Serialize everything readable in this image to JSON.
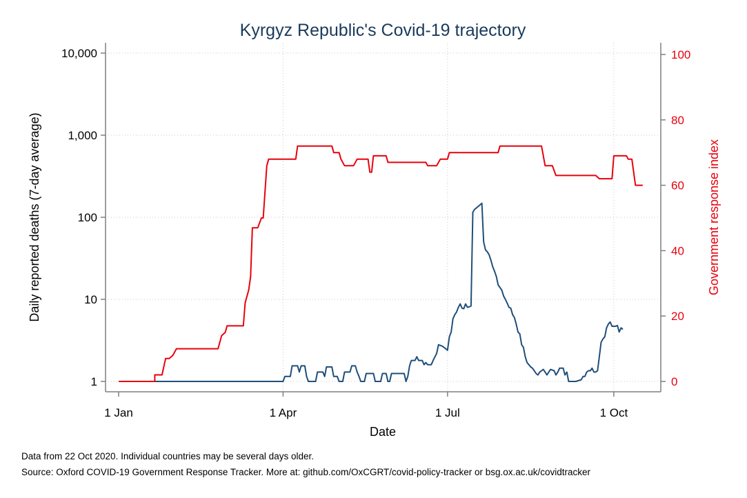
{
  "chart_data": {
    "type": "line",
    "title": "Kyrgyz Republic's Covid-19 trajectory",
    "xlabel": "Date",
    "ylabel_left": "Daily reported deaths (7-day average)",
    "ylabel_right": "Government response index",
    "x_ticks": [
      {
        "day": 0,
        "label": "1 Jan"
      },
      {
        "day": 91,
        "label": "1 Apr"
      },
      {
        "day": 182,
        "label": "1 Jul"
      },
      {
        "day": 274,
        "label": "1 Oct"
      }
    ],
    "y_left": {
      "scale": "log",
      "range": [
        1,
        10000
      ],
      "ticks": [
        {
          "value": 1,
          "label": "1"
        },
        {
          "value": 10,
          "label": "10"
        },
        {
          "value": 100,
          "label": "100"
        },
        {
          "value": 1000,
          "label": "1,000"
        },
        {
          "value": 10000,
          "label": "10,000"
        }
      ]
    },
    "y_right": {
      "scale": "linear",
      "range": [
        0,
        100
      ],
      "ticks": [
        {
          "value": 0,
          "label": "0"
        },
        {
          "value": 20,
          "label": "20"
        },
        {
          "value": 40,
          "label": "40"
        },
        {
          "value": 60,
          "label": "60"
        },
        {
          "value": 80,
          "label": "80"
        },
        {
          "value": 100,
          "label": "100"
        }
      ]
    },
    "grid": true,
    "series": [
      {
        "axis": "left",
        "color": "#1f4e79",
        "points": [
          [
            0,
            1
          ],
          [
            91,
            1
          ],
          [
            92,
            1.15
          ],
          [
            95,
            1.15
          ],
          [
            96,
            1.55
          ],
          [
            99,
            1.55
          ],
          [
            100,
            1.3
          ],
          [
            101,
            1.55
          ],
          [
            103,
            1.55
          ],
          [
            104,
            1.15
          ],
          [
            105,
            1
          ],
          [
            109,
            1
          ],
          [
            110,
            1.3
          ],
          [
            113,
            1.3
          ],
          [
            114,
            1.15
          ],
          [
            115,
            1.5
          ],
          [
            118,
            1.5
          ],
          [
            119,
            1.15
          ],
          [
            121,
            1.15
          ],
          [
            122,
            1
          ],
          [
            124,
            1
          ],
          [
            125,
            1.3
          ],
          [
            128,
            1.3
          ],
          [
            129,
            1.55
          ],
          [
            131,
            1.55
          ],
          [
            132,
            1.3
          ],
          [
            133,
            1.15
          ],
          [
            134,
            1
          ],
          [
            136,
            1
          ],
          [
            137,
            1.25
          ],
          [
            141,
            1.25
          ],
          [
            142,
            1
          ],
          [
            145,
            1
          ],
          [
            146,
            1.25
          ],
          [
            148,
            1.25
          ],
          [
            149,
            1
          ],
          [
            150,
            1
          ],
          [
            151,
            1.25
          ],
          [
            158,
            1.25
          ],
          [
            159,
            1
          ],
          [
            160,
            1.15
          ],
          [
            161,
            1.55
          ],
          [
            162,
            1.8
          ],
          [
            164,
            1.8
          ],
          [
            165,
            2
          ],
          [
            166,
            1.8
          ],
          [
            168,
            1.8
          ],
          [
            169,
            1.6
          ],
          [
            170,
            1.7
          ],
          [
            171,
            1.6
          ],
          [
            173,
            1.6
          ],
          [
            174,
            1.8
          ],
          [
            176,
            2.2
          ],
          [
            177,
            2.8
          ],
          [
            179,
            2.7
          ],
          [
            181,
            2.5
          ],
          [
            182,
            2.4
          ],
          [
            183,
            3.5
          ],
          [
            184,
            4
          ],
          [
            185,
            5.8
          ],
          [
            186,
            6.5
          ],
          [
            187,
            7
          ],
          [
            188,
            8
          ],
          [
            189,
            8.8
          ],
          [
            190,
            7.8
          ],
          [
            191,
            7.7
          ],
          [
            192,
            8.8
          ],
          [
            193,
            8
          ],
          [
            194,
            8.1
          ],
          [
            195,
            8.3
          ],
          [
            196,
            115
          ],
          [
            197,
            125
          ],
          [
            198,
            130
          ],
          [
            201,
            148
          ],
          [
            202,
            50
          ],
          [
            203,
            40
          ],
          [
            204,
            38
          ],
          [
            205,
            35
          ],
          [
            206,
            30
          ],
          [
            207,
            25
          ],
          [
            208,
            22
          ],
          [
            209,
            19
          ],
          [
            210,
            15
          ],
          [
            212,
            13
          ],
          [
            213,
            11
          ],
          [
            214,
            10
          ],
          [
            215,
            9
          ],
          [
            216,
            8
          ],
          [
            217,
            7.8
          ],
          [
            218,
            6.5
          ],
          [
            219,
            6
          ],
          [
            220,
            5
          ],
          [
            221,
            4
          ],
          [
            222,
            3.8
          ],
          [
            223,
            2.8
          ],
          [
            224,
            2.6
          ],
          [
            225,
            2
          ],
          [
            226,
            1.7
          ],
          [
            227,
            1.6
          ],
          [
            228,
            1.5
          ],
          [
            229,
            1.45
          ],
          [
            230,
            1.35
          ],
          [
            231,
            1.25
          ],
          [
            232,
            1.2
          ],
          [
            233,
            1.3
          ],
          [
            234,
            1.35
          ],
          [
            235,
            1.4
          ],
          [
            236,
            1.3
          ],
          [
            237,
            1.2
          ],
          [
            238,
            1.3
          ],
          [
            239,
            1.4
          ],
          [
            241,
            1.35
          ],
          [
            242,
            1.2
          ],
          [
            243,
            1.3
          ],
          [
            244,
            1.45
          ],
          [
            246,
            1.45
          ],
          [
            247,
            1.2
          ],
          [
            248,
            1.3
          ],
          [
            249,
            1
          ],
          [
            250,
            1
          ],
          [
            251,
            1
          ],
          [
            253,
            1
          ],
          [
            256,
            1.05
          ],
          [
            257,
            1.15
          ],
          [
            258,
            1.15
          ],
          [
            259,
            1.3
          ],
          [
            260,
            1.35
          ],
          [
            261,
            1.35
          ],
          [
            262,
            1.45
          ],
          [
            263,
            1.3
          ],
          [
            264,
            1.3
          ],
          [
            265,
            1.35
          ],
          [
            266,
            2
          ],
          [
            267,
            3
          ],
          [
            268,
            3.3
          ],
          [
            269,
            3.5
          ],
          [
            270,
            4.5
          ],
          [
            271,
            5
          ],
          [
            272,
            5.3
          ],
          [
            273,
            4.7
          ],
          [
            275,
            4.7
          ],
          [
            276,
            4.8
          ],
          [
            277,
            4
          ],
          [
            278,
            4.5
          ],
          [
            279,
            4.3
          ]
        ]
      },
      {
        "axis": "right",
        "color": "#e8000b",
        "points": [
          [
            0,
            0
          ],
          [
            20,
            0
          ],
          [
            20,
            2
          ],
          [
            24,
            2
          ],
          [
            26,
            7
          ],
          [
            28,
            7
          ],
          [
            30,
            8
          ],
          [
            32,
            10
          ],
          [
            55,
            10
          ],
          [
            57,
            14
          ],
          [
            59,
            15
          ],
          [
            60,
            17
          ],
          [
            69,
            17
          ],
          [
            70,
            24
          ],
          [
            72,
            28
          ],
          [
            73,
            32
          ],
          [
            74,
            47
          ],
          [
            77,
            47
          ],
          [
            79,
            50
          ],
          [
            80,
            50
          ],
          [
            82,
            66
          ],
          [
            83,
            68
          ],
          [
            98,
            68
          ],
          [
            99,
            72
          ],
          [
            118,
            72
          ],
          [
            119,
            70
          ],
          [
            122,
            70
          ],
          [
            123,
            68
          ],
          [
            125,
            66
          ],
          [
            130,
            66
          ],
          [
            132,
            68
          ],
          [
            138,
            68
          ],
          [
            139,
            64
          ],
          [
            140,
            64
          ],
          [
            141,
            69
          ],
          [
            148,
            69
          ],
          [
            149,
            67
          ],
          [
            170,
            67
          ],
          [
            171,
            66
          ],
          [
            176,
            66
          ],
          [
            178,
            68
          ],
          [
            182,
            68
          ],
          [
            183,
            70
          ],
          [
            210,
            70
          ],
          [
            211,
            72
          ],
          [
            234,
            72
          ],
          [
            236,
            66
          ],
          [
            240,
            66
          ],
          [
            242,
            63
          ],
          [
            264,
            63
          ],
          [
            266,
            62
          ],
          [
            273,
            62
          ],
          [
            274,
            69
          ],
          [
            281,
            69
          ],
          [
            282,
            68
          ],
          [
            284,
            68
          ],
          [
            286,
            60
          ],
          [
            290,
            60
          ]
        ]
      }
    ],
    "footnotes": [
      "Data from 22 Oct 2020. Individual countries may be several days older.",
      "Source: Oxford COVID-19 Government Response Tracker. More at: github.com/OxCGRT/covid-policy-tracker or bsg.ox.ac.uk/covidtracker"
    ]
  }
}
